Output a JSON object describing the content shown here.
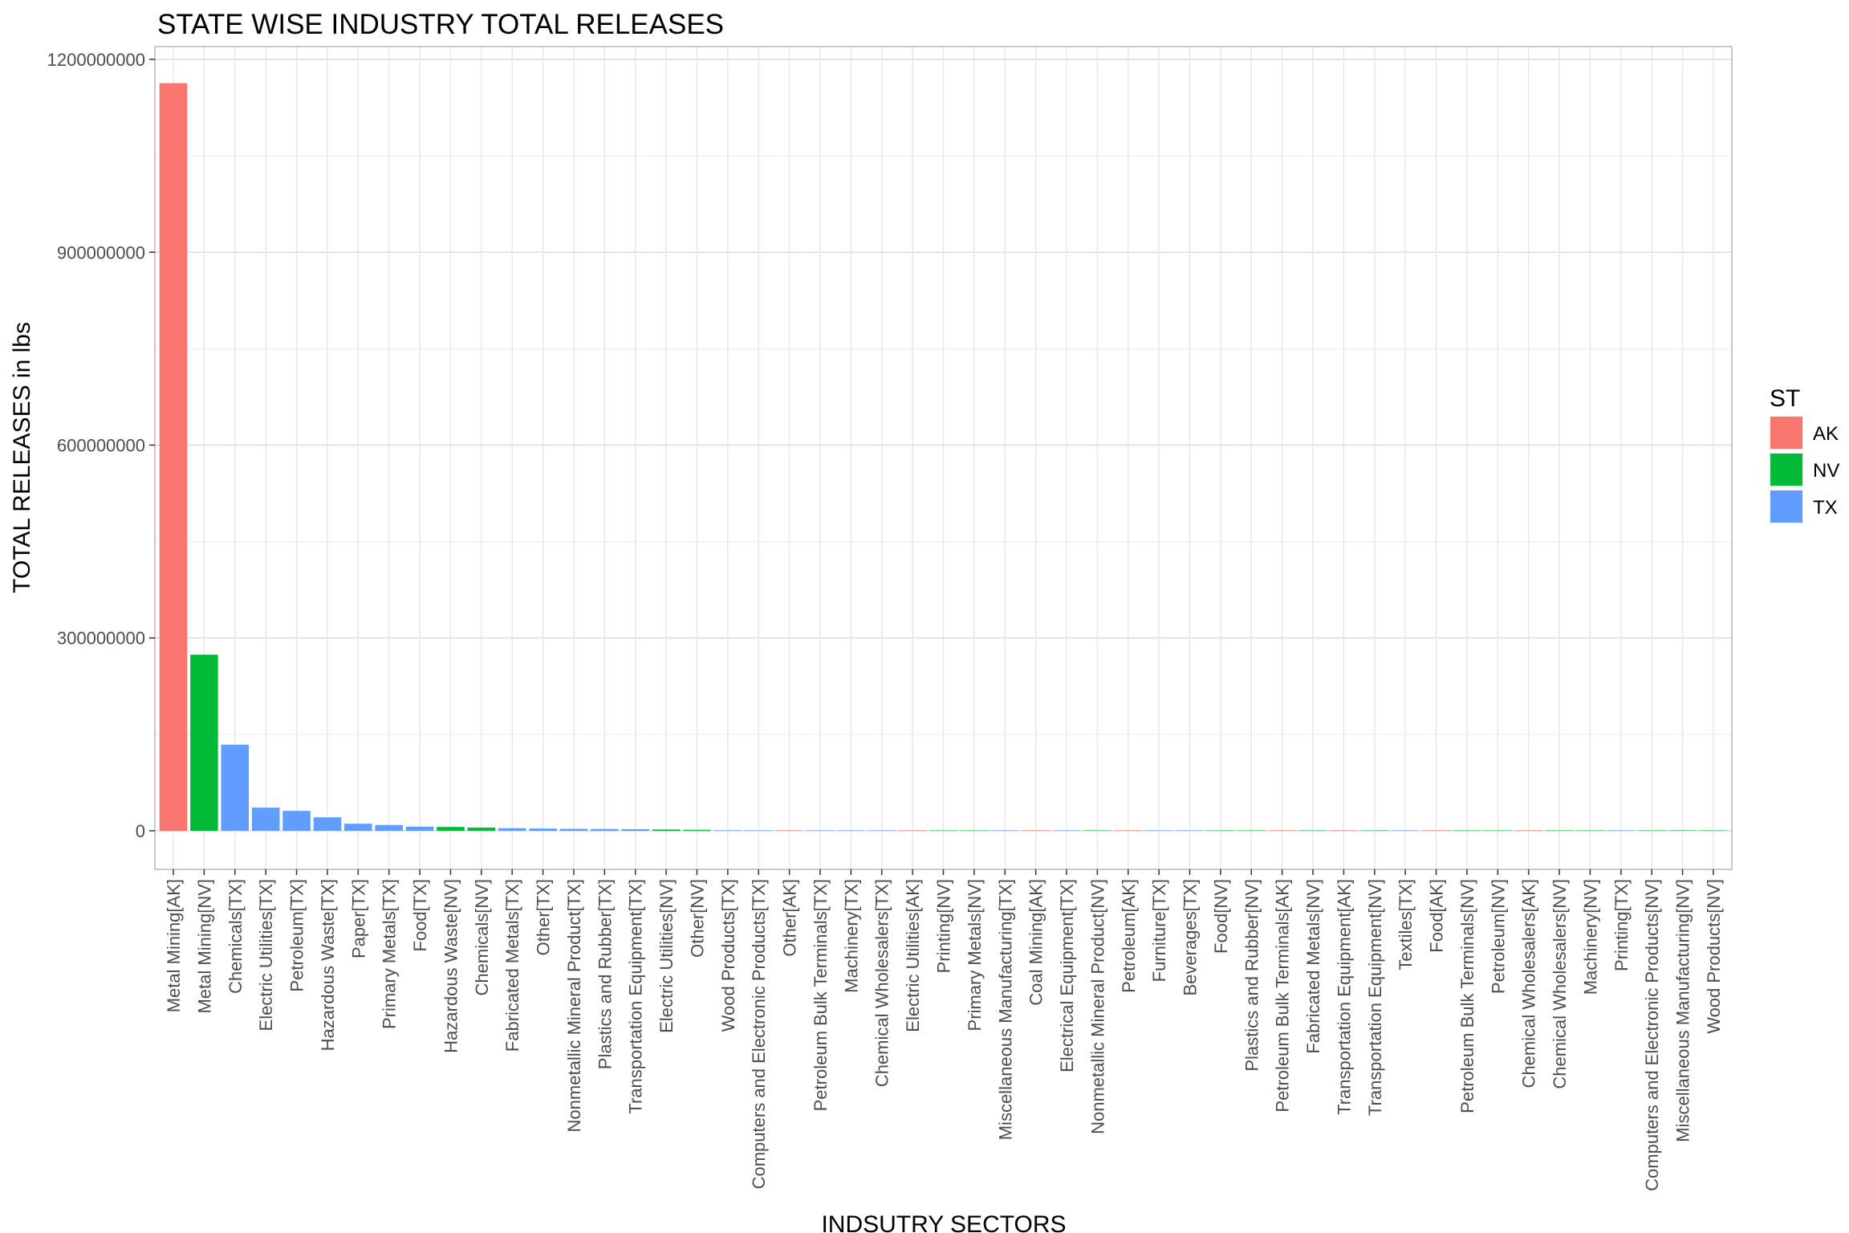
{
  "chart_data": {
    "type": "bar",
    "title": "STATE WISE INDUSTRY TOTAL RELEASES",
    "xlabel": "INDSUTRY SECTORS",
    "ylabel": "TOTAL RELEASES in lbs",
    "ylim": [
      -60000000,
      1220000000
    ],
    "yticks": [
      0,
      300000000,
      600000000,
      900000000,
      1200000000
    ],
    "ytick_labels": [
      "0",
      "300000000",
      "600000000",
      "900000000",
      "1200000000"
    ],
    "grid": true,
    "legend": {
      "title": "ST",
      "position": "right",
      "entries": [
        {
          "label": "AK",
          "color": "#F8766D"
        },
        {
          "label": "NV",
          "color": "#00BA38"
        },
        {
          "label": "TX",
          "color": "#619CFF"
        }
      ]
    },
    "categories": [
      "Metal Mining[AK]",
      "Metal Mining[NV]",
      "Chemicals[TX]",
      "Electric Utilities[TX]",
      "Petroleum[TX]",
      "Hazardous Waste[TX]",
      "Paper[TX]",
      "Primary Metals[TX]",
      "Food[TX]",
      "Hazardous Waste[NV]",
      "Chemicals[NV]",
      "Fabricated Metals[TX]",
      "Other[TX]",
      "Nonmetallic Mineral Product[TX]",
      "Plastics and Rubber[TX]",
      "Transportation Equipment[TX]",
      "Electric Utilities[NV]",
      "Other[NV]",
      "Wood Products[TX]",
      "Computers and Electronic Products[TX]",
      "Other[AK]",
      "Petroleum Bulk Terminals[TX]",
      "Machinery[TX]",
      "Chemical Wholesalers[TX]",
      "Electric Utilities[AK]",
      "Printing[NV]",
      "Primary Metals[NV]",
      "Miscellaneous Manufacturing[TX]",
      "Coal Mining[AK]",
      "Electrical Equipment[TX]",
      "Nonmetallic Mineral Product[NV]",
      "Petroleum[AK]",
      "Furniture[TX]",
      "Beverages[TX]",
      "Food[NV]",
      "Plastics and Rubber[NV]",
      "Petroleum Bulk Terminals[AK]",
      "Fabricated Metals[NV]",
      "Transportation Equipment[AK]",
      "Transportation Equipment[NV]",
      "Textiles[TX]",
      "Food[AK]",
      "Petroleum Bulk Terminals[NV]",
      "Petroleum[NV]",
      "Chemical Wholesalers[AK]",
      "Chemical Wholesalers[NV]",
      "Machinery[NV]",
      "Printing[TX]",
      "Computers and Electronic Products[NV]",
      "Miscellaneous Manufacturing[NV]",
      "Wood Products[NV]"
    ],
    "states": [
      "AK",
      "NV",
      "TX",
      "TX",
      "TX",
      "TX",
      "TX",
      "TX",
      "TX",
      "NV",
      "NV",
      "TX",
      "TX",
      "TX",
      "TX",
      "TX",
      "NV",
      "NV",
      "TX",
      "TX",
      "AK",
      "TX",
      "TX",
      "TX",
      "AK",
      "NV",
      "NV",
      "TX",
      "AK",
      "TX",
      "NV",
      "AK",
      "TX",
      "TX",
      "NV",
      "NV",
      "AK",
      "NV",
      "AK",
      "NV",
      "TX",
      "AK",
      "NV",
      "NV",
      "AK",
      "NV",
      "NV",
      "TX",
      "NV",
      "NV",
      "NV"
    ],
    "values": [
      1163000000,
      274000000,
      134000000,
      36000000,
      31000000,
      21000000,
      11000000,
      9000000,
      6500000,
      6000000,
      5000000,
      4000000,
      3500000,
      3000000,
      2800000,
      2500000,
      2000000,
      1500000,
      800000,
      700000,
      600000,
      500000,
      400000,
      300000,
      250000,
      200000,
      180000,
      150000,
      120000,
      100000,
      80000,
      70000,
      60000,
      50000,
      40000,
      30000,
      25000,
      20000,
      15000,
      12000,
      10000,
      8000,
      6000,
      5000,
      4000,
      3000,
      2000,
      1500,
      1000,
      500,
      100
    ]
  }
}
